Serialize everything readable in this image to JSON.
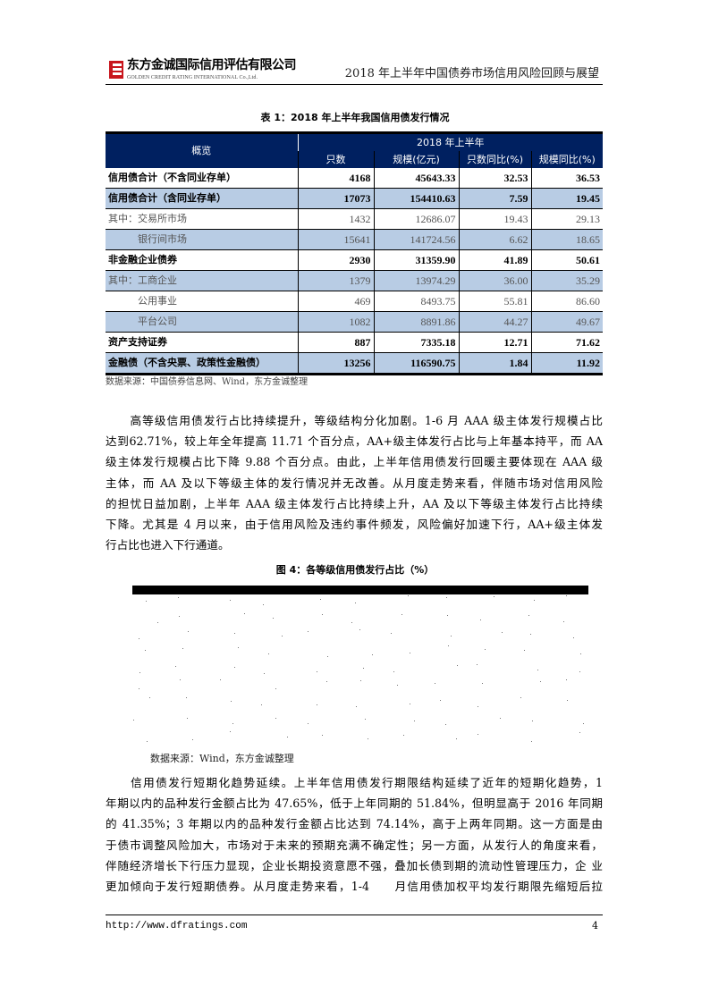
{
  "header": {
    "company_cn": "东方金诚国际信用评估有限公司",
    "company_en": "GOLDEN CREDIT RATING INTERNATIONAL Co.,Ltd.",
    "report_title": "2018 年上半年中国债券市场信用风险回顾与展望"
  },
  "table1": {
    "caption": "表 1：2018 年上半年我国信用债发行情况",
    "header_overview": "概览",
    "header_period": "2018 年上半年",
    "columns": [
      "只数",
      "规模(亿元)",
      "只数同比(%)",
      "规模同比(%)"
    ],
    "rows": [
      {
        "label": "信用债合计（不含同业存单）",
        "values": [
          "4168",
          "45643.33",
          "32.53",
          "36.53"
        ]
      },
      {
        "label": "信用债合计（含同业存单）",
        "values": [
          "17073",
          "154410.63",
          "7.59",
          "19.45"
        ]
      },
      {
        "label": "其中：交易所市场",
        "values": [
          "1432",
          "12686.07",
          "19.43",
          "29.13"
        ]
      },
      {
        "label": "银行间市场",
        "values": [
          "15641",
          "141724.56",
          "6.62",
          "18.65"
        ]
      },
      {
        "label": "非金融企业债券",
        "values": [
          "2930",
          "31359.90",
          "41.89",
          "50.61"
        ]
      },
      {
        "label": "其中：工商企业",
        "values": [
          "1379",
          "13974.29",
          "36.00",
          "35.29"
        ]
      },
      {
        "label": "公用事业",
        "values": [
          "469",
          "8493.75",
          "55.81",
          "86.60"
        ]
      },
      {
        "label": "平台公司",
        "values": [
          "1082",
          "8891.86",
          "44.27",
          "49.67"
        ]
      },
      {
        "label": "资产支持证券",
        "values": [
          "887",
          "7335.18",
          "12.71",
          "71.62"
        ]
      },
      {
        "label": "金融债（不含央票、政策性金融债）",
        "values": [
          "13256",
          "116590.75",
          "1.84",
          "11.92"
        ]
      }
    ],
    "source": "数据来源：中国债券信息网、Wind，东方金诚整理"
  },
  "paragraph1": [
    "　　高等级信用债发行占比持续提升，等级结构分化加剧。1-6 月 AAA 级主体发行规模占比",
    "达到62.71%，较上年全年提高 11.71 个百分点，AA+级主体发行占比与上年基本持平，而 AA",
    "级主体发行规模占比下降 9.88 个百分点。由此，上半年信用债发行回暖主要体现在 AAA 级",
    "主体，而 AA 及以下等级主体的发行情况并无改善。从月度走势来看，伴随市场对信用风险",
    "的担忧日益加剧，上半年 AAA 级主体发行占比持续上升，AA 及以下等级主体发行占比持续",
    "下降。尤其是 4 月以来，由于信用风险及违约事件频发，风险偏好加速下行，AA+级主体发",
    "行占比也进入下行通道。"
  ],
  "figure4": {
    "caption": "图 4：各等级信用债发行占比（%）",
    "source": "数据来源：Wind，东方金诚整理"
  },
  "paragraph2": [
    "　　信用债发行短期化趋势延续。上半年信用债发行期限结构延续了近年的短期化趋势，1",
    "年期以内的品种发行金额占比为 47.65%，低于上年同期的 51.84%，但明显高于 2016 年同期",
    "的 41.35%；3 年期以内的品种发行金额占比达到 74.14%，高于上两年同期。这一方面是由",
    "于债市调整风险加大，市场对于未来的预期充满不确定性；另一方面，从发行人的角度来看，",
    "伴随经济增长下行压力显现，企业长期投资意愿不强，叠加长债到期的流动性管理压力，企 业",
    "更加倾向于发行短期债券。从月度走势来看，1-4　　月信用债加权平均发行期限先缩短后拉"
  ],
  "footer": {
    "url": "http://www.dfratings.com",
    "page": "4"
  }
}
